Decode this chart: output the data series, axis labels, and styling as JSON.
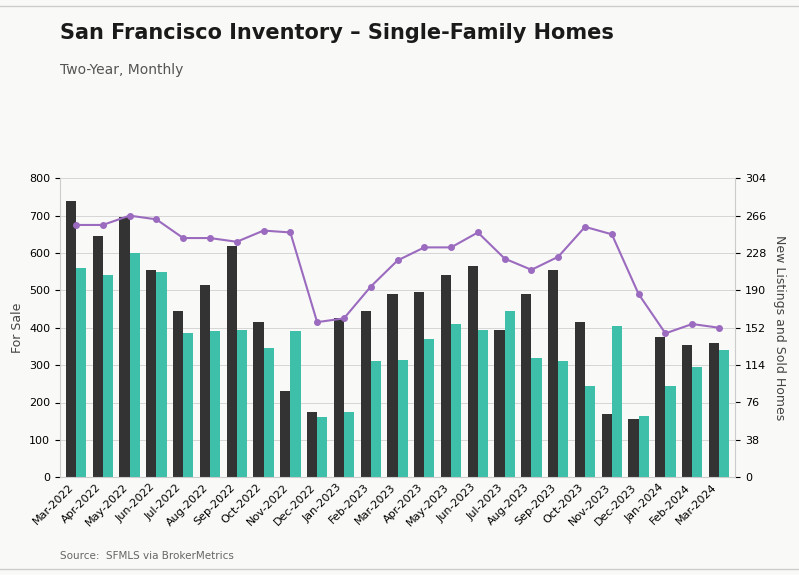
{
  "title": "San Francisco Inventory – Single-Family Homes",
  "subtitle": "Two-Year, Monthly",
  "source": "Source:  SFMLS via BrokerMetrics",
  "ylabel_left": "For Sale",
  "ylabel_right": "New Listings and Sold Homes",
  "categories": [
    "Mar-2022",
    "Apr-2022",
    "May-2022",
    "Jun-2022",
    "Jul-2022",
    "Aug-2022",
    "Sep-2022",
    "Oct-2022",
    "Nov-2022",
    "Dec-2022",
    "Jan-2023",
    "Feb-2023",
    "Mar-2023",
    "Apr-2023",
    "May-2023",
    "Jun-2023",
    "Jul-2023",
    "Aug-2023",
    "Sep-2023",
    "Oct-2023",
    "Nov-2023",
    "Dec-2023",
    "Jan-2024",
    "Feb-2024",
    "Mar-2024"
  ],
  "for_sale": [
    675,
    675,
    700,
    690,
    640,
    640,
    630,
    660,
    655,
    415,
    425,
    510,
    580,
    615,
    615,
    655,
    585,
    555,
    590,
    670,
    650,
    490,
    385,
    410,
    400
  ],
  "new_listings": [
    740,
    645,
    695,
    555,
    445,
    515,
    620,
    415,
    230,
    175,
    425,
    445,
    490,
    495,
    540,
    565,
    395,
    490,
    555,
    415,
    170,
    155,
    375,
    355,
    360
  ],
  "sold": [
    560,
    540,
    600,
    550,
    385,
    390,
    395,
    345,
    390,
    160,
    175,
    310,
    315,
    370,
    410,
    395,
    445,
    320,
    310,
    245,
    405,
    165,
    245,
    295,
    340
  ],
  "for_sale_color": "#9b6bbf",
  "new_listings_color": "#333333",
  "sold_color": "#3dbfaa",
  "background_color": "#f9f9f7",
  "ylim_left": [
    0,
    800
  ],
  "ylim_right": [
    0,
    304
  ],
  "yticks_left": [
    0,
    100,
    200,
    300,
    400,
    500,
    600,
    700,
    800
  ],
  "yticks_right": [
    0,
    38,
    76,
    114,
    152,
    190,
    228,
    266,
    304
  ],
  "title_fontsize": 15,
  "subtitle_fontsize": 10,
  "axis_label_fontsize": 9,
  "tick_fontsize": 8,
  "legend_fontsize": 9
}
